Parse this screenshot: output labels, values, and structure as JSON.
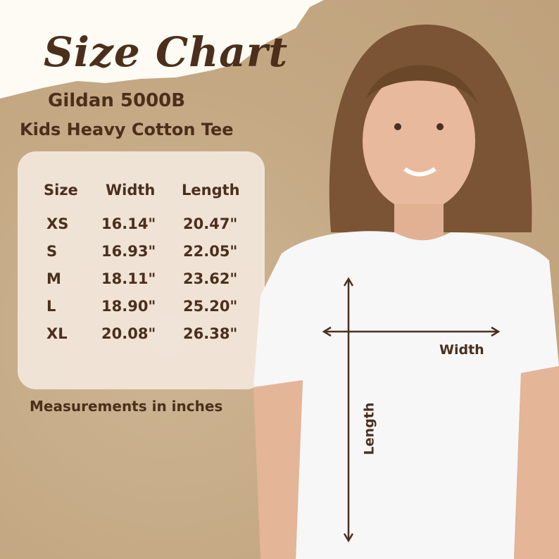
{
  "title": "Size Chart",
  "brand": "Gildan 5000B",
  "product": "Kids Heavy Cotton Tee",
  "table": {
    "headers": [
      "Size",
      "Width",
      "Length"
    ],
    "rows": [
      [
        "XS",
        "16.14\"",
        "20.47\""
      ],
      [
        "S",
        "16.93\"",
        "22.05\""
      ],
      [
        "M",
        "18.11\"",
        "23.62\""
      ],
      [
        "L",
        "18.90\"",
        "25.20\""
      ],
      [
        "XL",
        "20.08\"",
        "26.38\""
      ]
    ]
  },
  "note": "Measurements in inches",
  "diagram": {
    "width_label": "Width",
    "length_label": "Length"
  },
  "colors": {
    "text": "#4b2f1c",
    "paper": "#c4a883",
    "card": "#f1e6da"
  }
}
